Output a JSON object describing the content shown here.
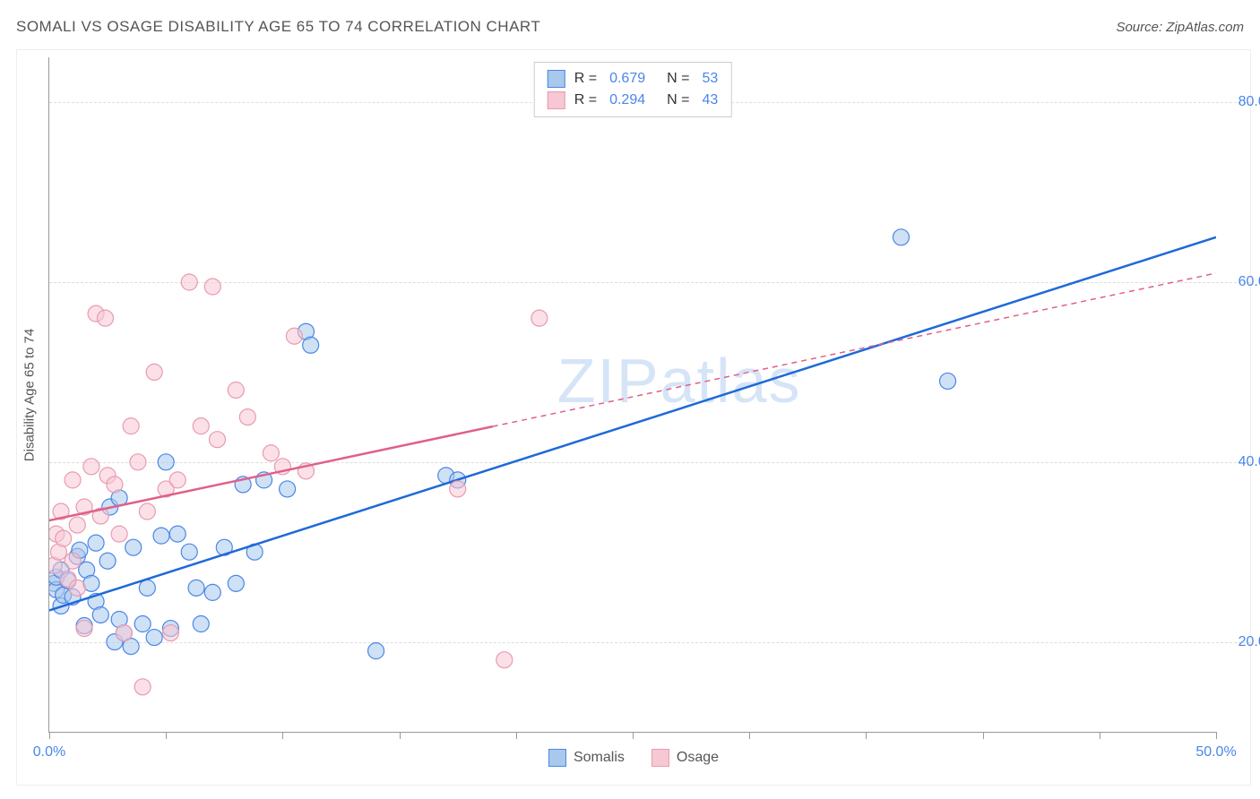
{
  "header": {
    "title": "SOMALI VS OSAGE DISABILITY AGE 65 TO 74 CORRELATION CHART",
    "source": "Source: ZipAtlas.com"
  },
  "chart": {
    "type": "scatter",
    "watermark": "ZIPatlas",
    "ylabel": "Disability Age 65 to 74",
    "xlim": [
      0,
      50
    ],
    "ylim": [
      10,
      85
    ],
    "xticks_major": [
      0,
      5,
      10,
      15,
      20,
      25,
      30,
      35,
      40,
      45,
      50
    ],
    "xtick_labels": {
      "0": "0.0%",
      "50": "50.0%"
    },
    "ytick_lines": [
      20,
      40,
      60,
      80
    ],
    "ytick_labels": {
      "20": "20.0%",
      "40": "40.0%",
      "60": "60.0%",
      "80": "80.0%"
    },
    "background_color": "#ffffff",
    "grid_color": "#dddddd",
    "axis_color": "#999999",
    "tick_label_color": "#4a86e8",
    "marker_radius": 9,
    "marker_opacity": 0.55,
    "series": [
      {
        "name": "Somalis",
        "color_fill": "#a8c8ec",
        "color_stroke": "#4a86e8",
        "line_color": "#1f69d8",
        "R": 0.679,
        "N": 53,
        "regression": {
          "x1": 0,
          "y1": 23.5,
          "x2": 50,
          "y2": 65,
          "solid_to_x": 50
        },
        "points": [
          [
            0.2,
            26.5
          ],
          [
            0.3,
            25.8
          ],
          [
            0.3,
            27.2
          ],
          [
            0.5,
            24.0
          ],
          [
            0.5,
            28.0
          ],
          [
            0.6,
            25.2
          ],
          [
            0.8,
            26.8
          ],
          [
            1.0,
            25.0
          ],
          [
            1.2,
            29.5
          ],
          [
            1.3,
            30.2
          ],
          [
            1.5,
            21.8
          ],
          [
            1.6,
            28.0
          ],
          [
            1.8,
            26.5
          ],
          [
            2.0,
            24.5
          ],
          [
            2.0,
            31.0
          ],
          [
            2.2,
            23.0
          ],
          [
            2.5,
            29.0
          ],
          [
            2.6,
            35.0
          ],
          [
            2.8,
            20.0
          ],
          [
            3.0,
            22.5
          ],
          [
            3.0,
            36.0
          ],
          [
            3.2,
            21.0
          ],
          [
            3.5,
            19.5
          ],
          [
            3.6,
            30.5
          ],
          [
            4.0,
            22.0
          ],
          [
            4.2,
            26.0
          ],
          [
            4.5,
            20.5
          ],
          [
            4.8,
            31.8
          ],
          [
            5.0,
            40.0
          ],
          [
            5.2,
            21.5
          ],
          [
            5.5,
            32.0
          ],
          [
            6.0,
            30.0
          ],
          [
            6.3,
            26.0
          ],
          [
            6.5,
            22.0
          ],
          [
            7.0,
            25.5
          ],
          [
            7.5,
            30.5
          ],
          [
            8.0,
            26.5
          ],
          [
            8.3,
            37.5
          ],
          [
            8.8,
            30.0
          ],
          [
            9.2,
            38.0
          ],
          [
            10.2,
            37.0
          ],
          [
            11.0,
            54.5
          ],
          [
            11.2,
            53.0
          ],
          [
            14.0,
            19.0
          ],
          [
            17.0,
            38.5
          ],
          [
            17.5,
            38.0
          ],
          [
            36.5,
            65.0
          ],
          [
            38.5,
            49.0
          ]
        ]
      },
      {
        "name": "Osage",
        "color_fill": "#f7c7d4",
        "color_stroke": "#e89bb0",
        "line_color": "#e06088",
        "R": 0.294,
        "N": 43,
        "regression": {
          "x1": 0,
          "y1": 33.5,
          "x2": 50,
          "y2": 61,
          "solid_to_x": 19
        },
        "points": [
          [
            0.2,
            28.5
          ],
          [
            0.3,
            32.0
          ],
          [
            0.4,
            30.0
          ],
          [
            0.5,
            34.5
          ],
          [
            0.6,
            31.5
          ],
          [
            0.8,
            27.0
          ],
          [
            1.0,
            29.0
          ],
          [
            1.0,
            38.0
          ],
          [
            1.2,
            33.0
          ],
          [
            1.2,
            26.0
          ],
          [
            1.5,
            35.0
          ],
          [
            1.5,
            21.5
          ],
          [
            1.8,
            39.5
          ],
          [
            2.0,
            56.5
          ],
          [
            2.2,
            34.0
          ],
          [
            2.4,
            56.0
          ],
          [
            2.5,
            38.5
          ],
          [
            2.8,
            37.5
          ],
          [
            3.0,
            32.0
          ],
          [
            3.2,
            21.0
          ],
          [
            3.5,
            44.0
          ],
          [
            3.8,
            40.0
          ],
          [
            4.0,
            15.0
          ],
          [
            4.2,
            34.5
          ],
          [
            4.5,
            50.0
          ],
          [
            5.0,
            37.0
          ],
          [
            5.2,
            21.0
          ],
          [
            5.5,
            38.0
          ],
          [
            6.0,
            60.0
          ],
          [
            6.5,
            44.0
          ],
          [
            7.0,
            59.5
          ],
          [
            7.2,
            42.5
          ],
          [
            8.0,
            48.0
          ],
          [
            8.5,
            45.0
          ],
          [
            9.5,
            41.0
          ],
          [
            10.0,
            39.5
          ],
          [
            10.5,
            54.0
          ],
          [
            11.0,
            39.0
          ],
          [
            17.5,
            37.0
          ],
          [
            19.5,
            18.0
          ],
          [
            21.0,
            56.0
          ]
        ]
      }
    ],
    "legend_bottom": [
      {
        "label": "Somalis",
        "fill": "#a8c8ec",
        "stroke": "#4a86e8"
      },
      {
        "label": "Osage",
        "fill": "#f7c7d4",
        "stroke": "#e89bb0"
      }
    ],
    "legend_top_stats": [
      {
        "fill": "#a8c8ec",
        "stroke": "#4a86e8",
        "r": "0.679",
        "n": "53"
      },
      {
        "fill": "#f7c7d4",
        "stroke": "#e89bb0",
        "r": "0.294",
        "n": "43"
      }
    ]
  }
}
